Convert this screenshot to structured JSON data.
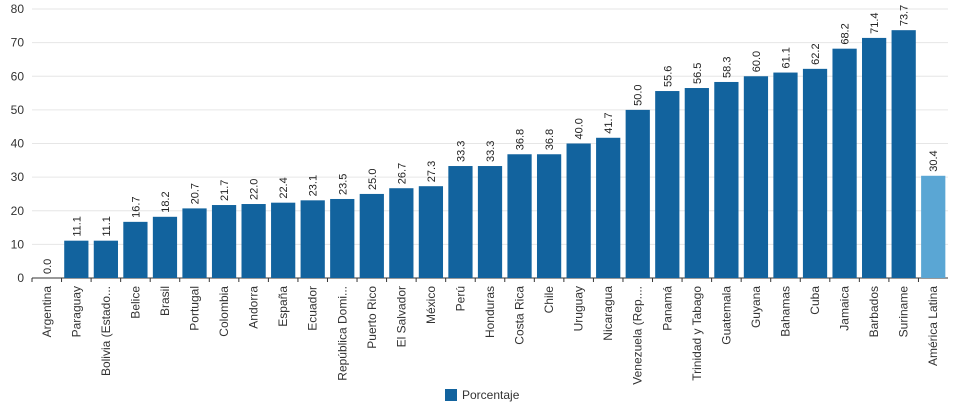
{
  "chart_data": {
    "type": "bar",
    "categories": [
      "Argentina",
      "Paraguay",
      "Bolivia (Estado...",
      "Belice",
      "Brasil",
      "Portugal",
      "Colombia",
      "Andorra",
      "España",
      "Ecuador",
      "República Domi...",
      "Puerto Rico",
      "El Salvador",
      "México",
      "Perú",
      "Honduras",
      "Costa Rica",
      "Chile",
      "Uruguay",
      "Nicaragua",
      "Venezuela (Rep....",
      "Panamá",
      "Trinidad y Tabago",
      "Guatemala",
      "Guyana",
      "Bahamas",
      "Cuba",
      "Jamaica",
      "Barbados",
      "Suriname",
      "América Latina"
    ],
    "values": [
      0.0,
      11.1,
      11.1,
      16.7,
      18.2,
      20.7,
      21.7,
      22.0,
      22.4,
      23.1,
      23.5,
      25.0,
      26.7,
      27.3,
      33.3,
      33.3,
      36.8,
      36.8,
      40.0,
      41.7,
      50.0,
      55.6,
      56.5,
      58.3,
      60.0,
      61.1,
      62.2,
      68.2,
      71.4,
      73.7,
      30.4
    ],
    "data_labels": [
      "0.0",
      "11.1",
      "11.1",
      "16.7",
      "18.2",
      "20.7",
      "21.7",
      "22.0",
      "22.4",
      "23.1",
      "23.5",
      "25.0",
      "26.7",
      "27.3",
      "33.3",
      "33.3",
      "36.8",
      "36.8",
      "40.0",
      "41.7",
      "50.0",
      "55.6",
      "56.5",
      "58.3",
      "60.0",
      "61.1",
      "62.2",
      "68.2",
      "71.4",
      "73.7",
      "30.4"
    ],
    "highlight_category": "América Latina",
    "series": [
      {
        "name": "Porcentaje",
        "color": "#12639e"
      }
    ],
    "highlight_color": "#5aa6d4",
    "y_ticks": [
      0,
      10,
      20,
      30,
      40,
      50,
      60,
      70,
      80
    ],
    "ylim": [
      0,
      80
    ],
    "title": "",
    "xlabel": "",
    "ylabel": "",
    "grid": true,
    "legend_position": "bottom-center"
  }
}
